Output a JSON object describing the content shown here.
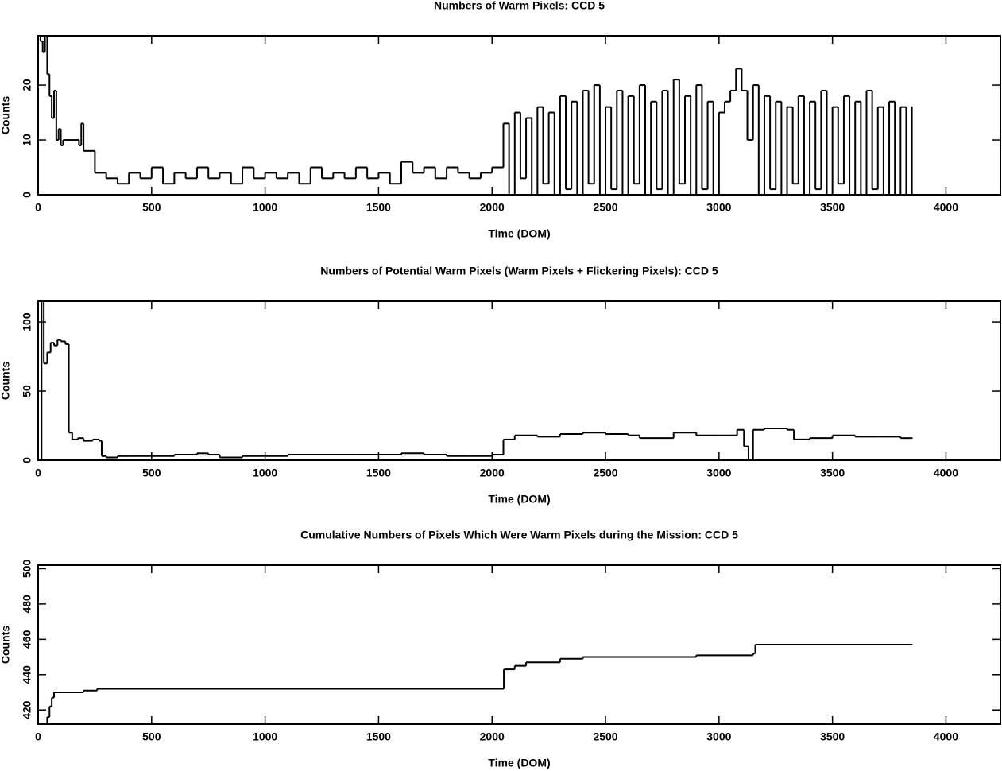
{
  "chart_data": [
    {
      "type": "line",
      "step": true,
      "title": "Numbers of Warm Pixels: CCD 5",
      "xlabel": "Time (DOM)",
      "ylabel": "Counts",
      "color": "#000000",
      "xlim": [
        0,
        4240
      ],
      "ylim": [
        0,
        29
      ],
      "xticks": [
        0,
        500,
        1000,
        1500,
        2000,
        2500,
        3000,
        3500,
        4000
      ],
      "yticks": [
        0,
        10,
        20
      ],
      "x": [
        0,
        10,
        20,
        30,
        40,
        50,
        60,
        70,
        80,
        90,
        100,
        110,
        120,
        130,
        140,
        150,
        160,
        170,
        180,
        190,
        200,
        250,
        300,
        350,
        400,
        450,
        500,
        550,
        600,
        650,
        700,
        750,
        800,
        850,
        900,
        950,
        1000,
        1050,
        1100,
        1150,
        1200,
        1250,
        1300,
        1350,
        1400,
        1450,
        1500,
        1550,
        1600,
        1650,
        1700,
        1750,
        1800,
        1850,
        1900,
        1950,
        2000,
        2050,
        2075,
        2100,
        2125,
        2150,
        2175,
        2200,
        2225,
        2250,
        2275,
        2300,
        2325,
        2350,
        2375,
        2400,
        2425,
        2450,
        2475,
        2500,
        2525,
        2550,
        2575,
        2600,
        2625,
        2650,
        2675,
        2700,
        2725,
        2750,
        2775,
        2800,
        2825,
        2850,
        2875,
        2900,
        2925,
        2950,
        2975,
        3000,
        3025,
        3050,
        3075,
        3100,
        3125,
        3150,
        3175,
        3200,
        3225,
        3250,
        3275,
        3300,
        3325,
        3350,
        3375,
        3400,
        3425,
        3450,
        3475,
        3500,
        3525,
        3550,
        3575,
        3600,
        3625,
        3650,
        3675,
        3700,
        3725,
        3750,
        3775,
        3800,
        3825,
        3850
      ],
      "values": [
        29,
        28,
        26,
        29,
        22,
        18,
        14,
        19,
        10,
        12,
        9,
        10,
        10,
        10,
        10,
        10,
        10,
        10,
        9,
        13,
        8,
        4,
        3,
        2,
        4,
        3,
        5,
        2,
        4,
        3,
        5,
        3,
        4,
        2,
        5,
        3,
        4,
        3,
        4,
        2,
        5,
        3,
        4,
        3,
        5,
        3,
        4,
        2,
        6,
        4,
        5,
        3,
        5,
        4,
        3,
        4,
        5,
        13,
        0,
        15,
        3,
        14,
        0,
        16,
        2,
        15,
        0,
        18,
        1,
        17,
        0,
        19,
        2,
        20,
        0,
        16,
        1,
        19,
        0,
        18,
        2,
        20,
        0,
        17,
        1,
        19,
        0,
        21,
        2,
        18,
        0,
        20,
        1,
        17,
        0,
        15,
        17,
        19,
        23,
        19,
        10,
        20,
        0,
        18,
        1,
        17,
        0,
        16,
        2,
        18,
        0,
        17,
        1,
        19,
        0,
        16,
        2,
        18,
        0,
        17,
        0,
        19,
        1,
        16,
        0,
        17,
        0,
        16,
        0,
        16
      ]
    },
    {
      "type": "line",
      "step": true,
      "title": "Numbers of Potential Warm Pixels (Warm Pixels + Flickering Pixels): CCD 5",
      "xlabel": "Time (DOM)",
      "ylabel": "Counts",
      "color": "#000000",
      "xlim": [
        0,
        4240
      ],
      "ylim": [
        0,
        115
      ],
      "xticks": [
        0,
        500,
        1000,
        1500,
        2000,
        2500,
        3000,
        3500,
        4000
      ],
      "yticks": [
        0,
        50,
        100
      ],
      "x": [
        0,
        15,
        25,
        40,
        55,
        70,
        85,
        100,
        120,
        135,
        150,
        175,
        200,
        240,
        270,
        280,
        300,
        350,
        400,
        500,
        600,
        700,
        750,
        800,
        900,
        1000,
        1100,
        1200,
        1300,
        1400,
        1500,
        1600,
        1700,
        1800,
        1900,
        2000,
        2050,
        2100,
        2200,
        2300,
        2400,
        2500,
        2600,
        2650,
        2800,
        2900,
        3000,
        3080,
        3110,
        3130,
        3150,
        3200,
        3300,
        3330,
        3400,
        3500,
        3600,
        3700,
        3800,
        3850
      ],
      "values": [
        0,
        115,
        70,
        78,
        85,
        83,
        87,
        86,
        84,
        20,
        15,
        16,
        14,
        15,
        14,
        3,
        2,
        3,
        3,
        3,
        4,
        5,
        4,
        2,
        3,
        3,
        4,
        4,
        4,
        4,
        4,
        5,
        4,
        3,
        3,
        4,
        15,
        18,
        17,
        19,
        20,
        19,
        18,
        16,
        20,
        18,
        18,
        22,
        10,
        0,
        22,
        23,
        22,
        15,
        16,
        18,
        17,
        17,
        16,
        16
      ]
    },
    {
      "type": "line",
      "step": true,
      "title": "Cumulative Numbers of Pixels Which Were Warm Pixels during the Mission: CCD 5",
      "xlabel": "Time (DOM)",
      "ylabel": "Counts",
      "color": "#000000",
      "xlim": [
        0,
        4240
      ],
      "ylim": [
        412,
        502
      ],
      "xticks": [
        0,
        500,
        1000,
        1500,
        2000,
        2500,
        3000,
        3500,
        4000
      ],
      "yticks": [
        420,
        440,
        460,
        480,
        500
      ],
      "x": [
        30,
        40,
        50,
        60,
        70,
        200,
        260,
        2052,
        2100,
        2150,
        2300,
        2400,
        2900,
        3150,
        3160,
        3850
      ],
      "values": [
        412,
        416,
        422,
        427,
        430,
        431,
        432,
        443,
        445,
        447,
        449,
        450,
        451,
        452,
        457,
        457
      ]
    }
  ]
}
